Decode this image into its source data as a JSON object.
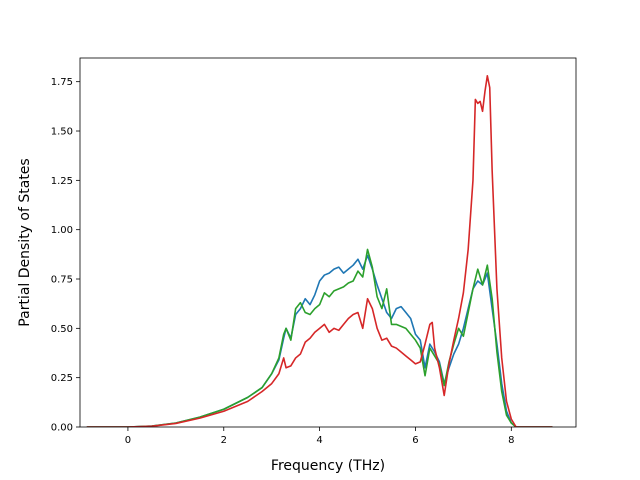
{
  "chart_data": {
    "type": "line",
    "title": "",
    "xlabel": "Frequency (THz)",
    "ylabel": "Partial Density of States",
    "xlim": [
      -1.0,
      9.35
    ],
    "ylim": [
      0.0,
      1.87
    ],
    "xticks": [
      0,
      2,
      4,
      6,
      8
    ],
    "xtick_labels": [
      "0",
      "2",
      "4",
      "6",
      "8"
    ],
    "yticks": [
      0.0,
      0.25,
      0.5,
      0.75,
      1.0,
      1.25,
      1.5,
      1.75
    ],
    "ytick_labels": [
      "0.00",
      "0.25",
      "0.50",
      "0.75",
      "1.00",
      "1.25",
      "1.50",
      "1.75"
    ],
    "grid": false,
    "series": [
      {
        "color": "#1f77b4",
        "points": [
          [
            -0.85,
            0
          ],
          [
            0,
            0
          ],
          [
            0.5,
            0.005
          ],
          [
            1,
            0.02
          ],
          [
            1.5,
            0.05
          ],
          [
            2,
            0.09
          ],
          [
            2.5,
            0.15
          ],
          [
            2.8,
            0.2
          ],
          [
            3.0,
            0.27
          ],
          [
            3.15,
            0.34
          ],
          [
            3.25,
            0.45
          ],
          [
            3.3,
            0.5
          ],
          [
            3.4,
            0.45
          ],
          [
            3.5,
            0.57
          ],
          [
            3.6,
            0.6
          ],
          [
            3.7,
            0.65
          ],
          [
            3.8,
            0.62
          ],
          [
            3.9,
            0.67
          ],
          [
            4.0,
            0.74
          ],
          [
            4.1,
            0.77
          ],
          [
            4.2,
            0.78
          ],
          [
            4.3,
            0.8
          ],
          [
            4.4,
            0.81
          ],
          [
            4.5,
            0.78
          ],
          [
            4.6,
            0.8
          ],
          [
            4.7,
            0.82
          ],
          [
            4.8,
            0.85
          ],
          [
            4.9,
            0.8
          ],
          [
            5.0,
            0.87
          ],
          [
            5.1,
            0.8
          ],
          [
            5.2,
            0.72
          ],
          [
            5.3,
            0.65
          ],
          [
            5.4,
            0.58
          ],
          [
            5.5,
            0.55
          ],
          [
            5.6,
            0.6
          ],
          [
            5.7,
            0.61
          ],
          [
            5.8,
            0.58
          ],
          [
            5.9,
            0.55
          ],
          [
            6.0,
            0.47
          ],
          [
            6.1,
            0.44
          ],
          [
            6.2,
            0.3
          ],
          [
            6.3,
            0.42
          ],
          [
            6.4,
            0.38
          ],
          [
            6.5,
            0.33
          ],
          [
            6.6,
            0.22
          ],
          [
            6.7,
            0.3
          ],
          [
            6.8,
            0.37
          ],
          [
            6.9,
            0.42
          ],
          [
            7.0,
            0.5
          ],
          [
            7.1,
            0.6
          ],
          [
            7.2,
            0.7
          ],
          [
            7.3,
            0.74
          ],
          [
            7.4,
            0.72
          ],
          [
            7.5,
            0.78
          ],
          [
            7.6,
            0.6
          ],
          [
            7.7,
            0.42
          ],
          [
            7.8,
            0.22
          ],
          [
            7.9,
            0.08
          ],
          [
            8.0,
            0.02
          ],
          [
            8.1,
            0
          ],
          [
            8.85,
            0
          ]
        ]
      },
      {
        "color": "#2ca02c",
        "points": [
          [
            -0.85,
            0
          ],
          [
            0,
            0
          ],
          [
            0.5,
            0.005
          ],
          [
            1,
            0.02
          ],
          [
            1.5,
            0.05
          ],
          [
            2,
            0.09
          ],
          [
            2.5,
            0.15
          ],
          [
            2.8,
            0.2
          ],
          [
            3.0,
            0.27
          ],
          [
            3.15,
            0.35
          ],
          [
            3.25,
            0.47
          ],
          [
            3.3,
            0.5
          ],
          [
            3.4,
            0.44
          ],
          [
            3.5,
            0.6
          ],
          [
            3.6,
            0.63
          ],
          [
            3.7,
            0.58
          ],
          [
            3.8,
            0.57
          ],
          [
            3.9,
            0.6
          ],
          [
            4.0,
            0.62
          ],
          [
            4.1,
            0.68
          ],
          [
            4.2,
            0.66
          ],
          [
            4.3,
            0.69
          ],
          [
            4.4,
            0.7
          ],
          [
            4.5,
            0.71
          ],
          [
            4.6,
            0.73
          ],
          [
            4.7,
            0.74
          ],
          [
            4.8,
            0.79
          ],
          [
            4.9,
            0.76
          ],
          [
            5.0,
            0.9
          ],
          [
            5.1,
            0.81
          ],
          [
            5.2,
            0.66
          ],
          [
            5.3,
            0.6
          ],
          [
            5.4,
            0.7
          ],
          [
            5.5,
            0.52
          ],
          [
            5.6,
            0.52
          ],
          [
            5.7,
            0.51
          ],
          [
            5.8,
            0.5
          ],
          [
            5.9,
            0.47
          ],
          [
            6.0,
            0.44
          ],
          [
            6.1,
            0.4
          ],
          [
            6.2,
            0.26
          ],
          [
            6.3,
            0.4
          ],
          [
            6.4,
            0.36
          ],
          [
            6.5,
            0.32
          ],
          [
            6.6,
            0.21
          ],
          [
            6.7,
            0.33
          ],
          [
            6.8,
            0.42
          ],
          [
            6.9,
            0.5
          ],
          [
            7.0,
            0.46
          ],
          [
            7.1,
            0.58
          ],
          [
            7.2,
            0.7
          ],
          [
            7.3,
            0.8
          ],
          [
            7.4,
            0.72
          ],
          [
            7.5,
            0.82
          ],
          [
            7.6,
            0.65
          ],
          [
            7.7,
            0.38
          ],
          [
            7.8,
            0.18
          ],
          [
            7.9,
            0.06
          ],
          [
            8.0,
            0.02
          ],
          [
            8.1,
            0
          ],
          [
            8.85,
            0
          ]
        ]
      },
      {
        "color": "#d62728",
        "points": [
          [
            -0.85,
            0
          ],
          [
            0,
            0
          ],
          [
            0.5,
            0.004
          ],
          [
            1,
            0.018
          ],
          [
            1.5,
            0.045
          ],
          [
            2,
            0.08
          ],
          [
            2.5,
            0.13
          ],
          [
            2.8,
            0.18
          ],
          [
            3.0,
            0.22
          ],
          [
            3.15,
            0.27
          ],
          [
            3.25,
            0.35
          ],
          [
            3.3,
            0.3
          ],
          [
            3.4,
            0.31
          ],
          [
            3.5,
            0.35
          ],
          [
            3.6,
            0.37
          ],
          [
            3.7,
            0.43
          ],
          [
            3.8,
            0.45
          ],
          [
            3.9,
            0.48
          ],
          [
            4.0,
            0.5
          ],
          [
            4.1,
            0.52
          ],
          [
            4.2,
            0.48
          ],
          [
            4.3,
            0.5
          ],
          [
            4.4,
            0.49
          ],
          [
            4.5,
            0.52
          ],
          [
            4.6,
            0.55
          ],
          [
            4.7,
            0.57
          ],
          [
            4.8,
            0.58
          ],
          [
            4.9,
            0.5
          ],
          [
            5.0,
            0.65
          ],
          [
            5.1,
            0.6
          ],
          [
            5.2,
            0.5
          ],
          [
            5.3,
            0.44
          ],
          [
            5.4,
            0.45
          ],
          [
            5.5,
            0.41
          ],
          [
            5.6,
            0.4
          ],
          [
            5.7,
            0.38
          ],
          [
            5.8,
            0.36
          ],
          [
            5.9,
            0.34
          ],
          [
            6.0,
            0.32
          ],
          [
            6.1,
            0.33
          ],
          [
            6.2,
            0.42
          ],
          [
            6.3,
            0.52
          ],
          [
            6.35,
            0.53
          ],
          [
            6.4,
            0.4
          ],
          [
            6.5,
            0.3
          ],
          [
            6.6,
            0.16
          ],
          [
            6.7,
            0.32
          ],
          [
            6.8,
            0.44
          ],
          [
            6.9,
            0.55
          ],
          [
            7.0,
            0.68
          ],
          [
            7.1,
            0.9
          ],
          [
            7.2,
            1.25
          ],
          [
            7.25,
            1.66
          ],
          [
            7.3,
            1.64
          ],
          [
            7.35,
            1.65
          ],
          [
            7.4,
            1.6
          ],
          [
            7.45,
            1.7
          ],
          [
            7.5,
            1.78
          ],
          [
            7.55,
            1.72
          ],
          [
            7.6,
            1.3
          ],
          [
            7.7,
            0.7
          ],
          [
            7.8,
            0.35
          ],
          [
            7.9,
            0.13
          ],
          [
            8.0,
            0.04
          ],
          [
            8.1,
            0
          ],
          [
            8.85,
            0
          ]
        ]
      }
    ]
  }
}
